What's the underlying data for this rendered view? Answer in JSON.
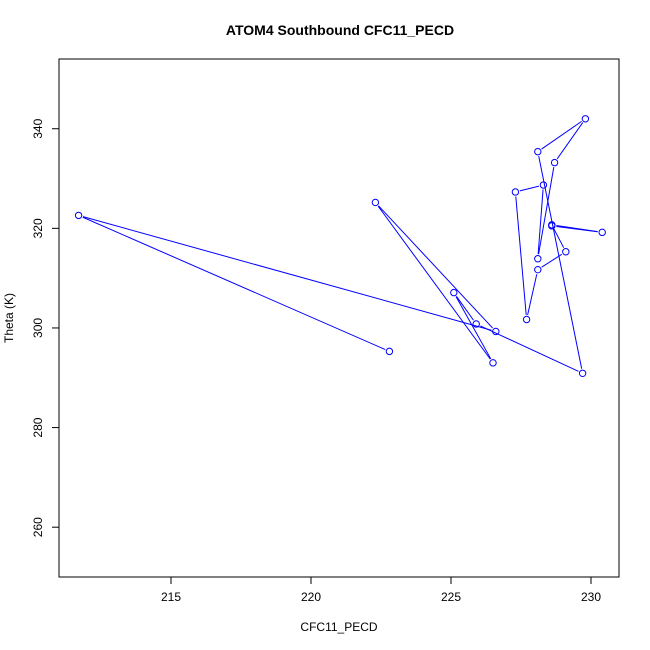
{
  "chart_data": {
    "type": "line",
    "title": "ATOM4 Southbound CFC11_PECD",
    "xlabel": "CFC11_PECD",
    "ylabel": "Theta (K)",
    "xlim": [
      211,
      231
    ],
    "ylim": [
      250,
      354
    ],
    "xticks": [
      215,
      220,
      225,
      230
    ],
    "yticks": [
      260,
      280,
      300,
      320,
      340
    ],
    "grid": false,
    "marker": "open-circle",
    "color": "#0000ff",
    "series": [
      {
        "x": [
          222.8,
          211.7,
          226.6,
          222.3,
          226.5,
          225.1,
          225.9,
          229.7,
          228.1,
          229.8,
          228.7,
          228.1,
          228.3,
          227.3,
          227.7,
          228.1,
          229.1,
          228.6,
          230.4,
          228.6
        ],
        "y": [
          295.3,
          322.6,
          299.3,
          325.2,
          293.0,
          307.1,
          300.8,
          290.9,
          335.4,
          342.0,
          333.2,
          313.9,
          328.7,
          327.3,
          301.7,
          311.7,
          315.3,
          320.7,
          319.2,
          320.5
        ]
      }
    ]
  }
}
